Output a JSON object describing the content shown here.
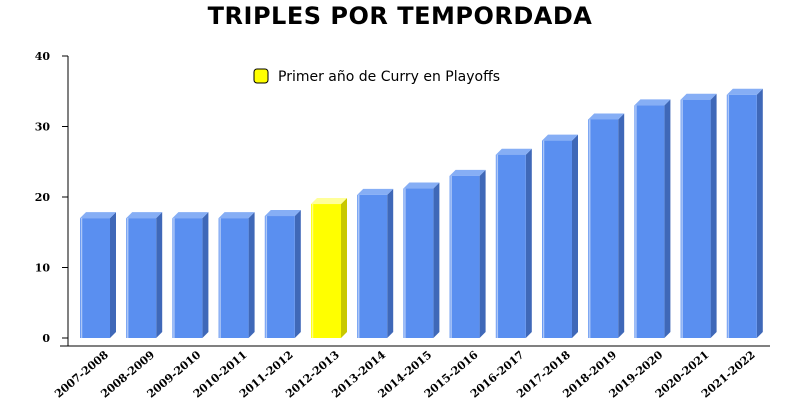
{
  "chart_data": {
    "type": "bar",
    "title": "TRIPLES POR TEMPORDADA",
    "xlabel": "",
    "ylabel": "",
    "categories": [
      "2007-2008",
      "2008-2009",
      "2009-2010",
      "2010-2011",
      "2011-2012",
      "2012-2013",
      "2013-2014",
      "2014-2015",
      "2015-2016",
      "2016-2017",
      "2017-2018",
      "2018-2019",
      "2019-2020",
      "2020-2021",
      "2021-2022"
    ],
    "values": [
      17,
      17,
      17,
      17,
      17.3,
      19,
      20.3,
      21.2,
      23,
      26,
      28,
      31,
      33,
      33.8,
      34.5
    ],
    "highlight_index": 5,
    "ylim": [
      0,
      40
    ],
    "yticks": [
      "0",
      "10",
      "20",
      "30",
      "40"
    ],
    "grid": false,
    "legend": {
      "position": "top-center",
      "entries": [
        {
          "label": "Primer año de Curry en Playoffs",
          "color": "#ffff00"
        }
      ]
    },
    "colors": {
      "bar": "#5a8ff0",
      "bar_side": "#3f68b8",
      "bar_top": "#86aef5",
      "highlight": "#ffff00",
      "highlight_side": "#c8c800",
      "highlight_top": "#ffff99"
    }
  }
}
